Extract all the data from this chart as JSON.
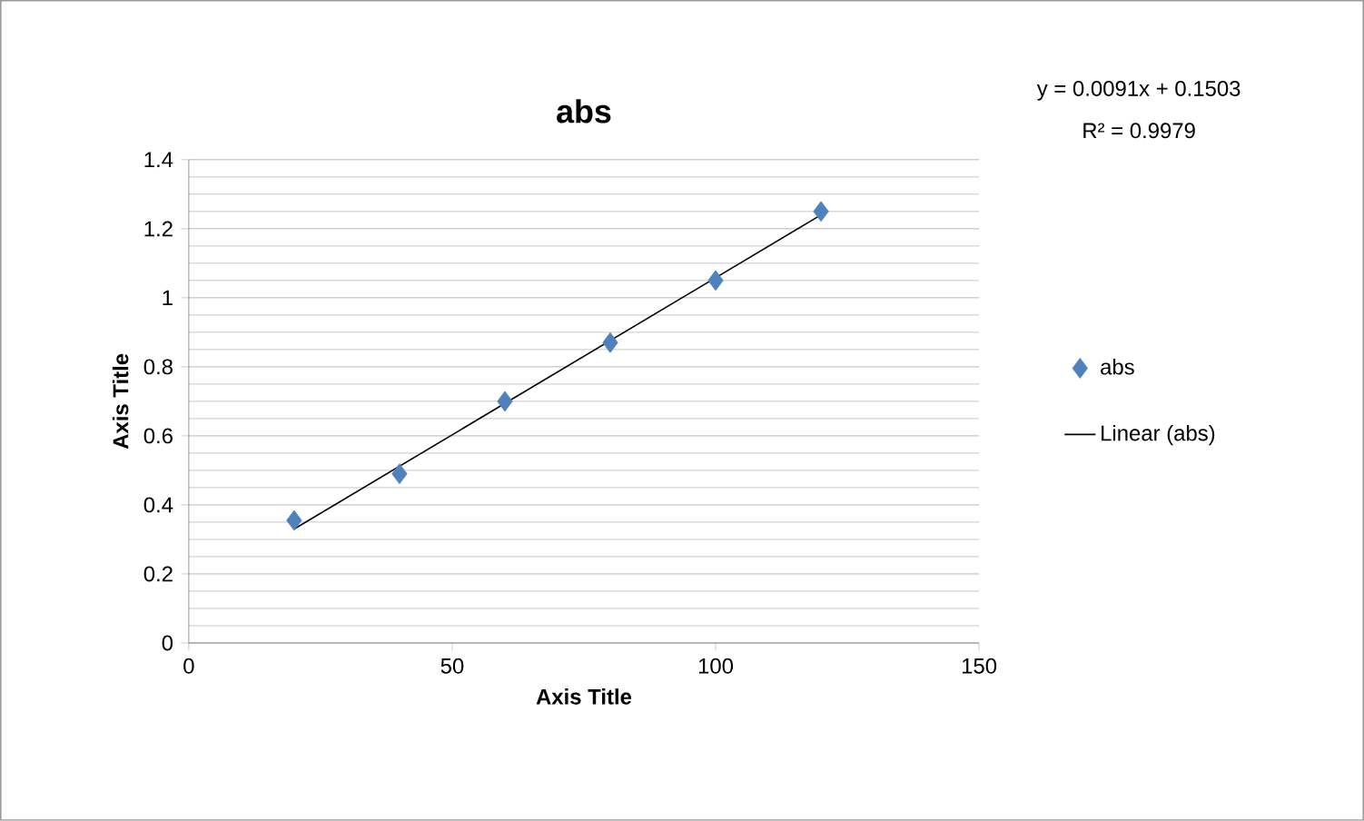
{
  "chart_data": {
    "type": "scatter",
    "title": "abs",
    "xlabel": "Axis Title",
    "ylabel": "Axis Title",
    "xlim": [
      0,
      150
    ],
    "xticks": [
      0,
      50,
      100,
      150
    ],
    "ylim": [
      0,
      1.4
    ],
    "yticks": [
      0,
      0.2,
      0.4,
      0.6,
      0.8,
      1,
      1.2,
      1.4
    ],
    "grid": "y",
    "legend": "right",
    "series": [
      {
        "name": "abs",
        "marker": "diamond",
        "color": "#4f81bd",
        "x": [
          20,
          40,
          60,
          80,
          100,
          120
        ],
        "values": [
          0.355,
          0.49,
          0.7,
          0.87,
          1.05,
          1.25
        ]
      },
      {
        "name": "Linear (abs)",
        "type": "line",
        "color": "#000000",
        "x": [
          20,
          120
        ],
        "values": [
          0.33,
          1.24
        ]
      }
    ],
    "annotations": [
      "y = 0.0091x + 0.1503",
      "R² = 0.9979"
    ]
  }
}
